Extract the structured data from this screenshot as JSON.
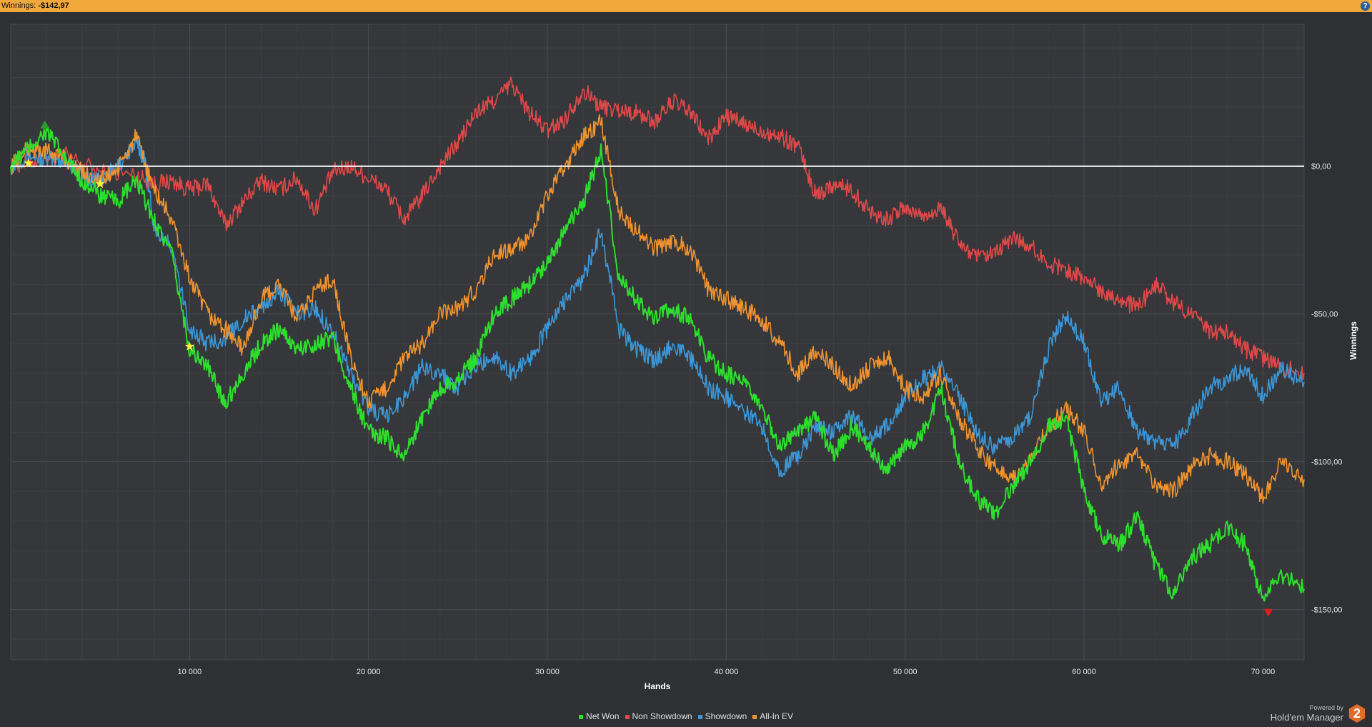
{
  "header": {
    "label": "Winnings:",
    "value": "-$142,97",
    "help_icon": "question-icon"
  },
  "branding": {
    "powered_by": "Powered by",
    "product": "Hold'em Manager",
    "logo_text": "2"
  },
  "chart_data": {
    "type": "line",
    "xlabel": "Hands",
    "ylabel": "Winnings",
    "xlim": [
      0,
      72300
    ],
    "ylim": [
      -167,
      48
    ],
    "x_ticks": [
      {
        "value": 10000,
        "label": "10 000"
      },
      {
        "value": 20000,
        "label": "20 000"
      },
      {
        "value": 30000,
        "label": "30 000"
      },
      {
        "value": 40000,
        "label": "40 000"
      },
      {
        "value": 50000,
        "label": "50 000"
      },
      {
        "value": 60000,
        "label": "60 000"
      },
      {
        "value": 70000,
        "label": "70 000"
      }
    ],
    "y_ticks": [
      {
        "value": 0,
        "label": "$0,00"
      },
      {
        "value": -50,
        "label": "-$50,00"
      },
      {
        "value": -100,
        "label": "-$100,00"
      },
      {
        "value": -150,
        "label": "-$150,00"
      }
    ],
    "grid": true,
    "legend_position": "bottom-center",
    "zero_line": true,
    "series": [
      {
        "name": "Non Showdown",
        "color": "#e04848",
        "points": [
          [
            0,
            0
          ],
          [
            1500,
            2
          ],
          [
            3000,
            4
          ],
          [
            5000,
            -2
          ],
          [
            7000,
            -3
          ],
          [
            8000,
            -6
          ],
          [
            9000,
            -5
          ],
          [
            10000,
            -8
          ],
          [
            11000,
            -6
          ],
          [
            12000,
            -20
          ],
          [
            13000,
            -12
          ],
          [
            14000,
            -5
          ],
          [
            15000,
            -8
          ],
          [
            16000,
            -4
          ],
          [
            17000,
            -15
          ],
          [
            18000,
            -2
          ],
          [
            19000,
            0
          ],
          [
            20000,
            -4
          ],
          [
            21000,
            -8
          ],
          [
            22000,
            -18
          ],
          [
            23000,
            -10
          ],
          [
            24000,
            0
          ],
          [
            25000,
            8
          ],
          [
            26000,
            18
          ],
          [
            27000,
            22
          ],
          [
            28000,
            28
          ],
          [
            29000,
            18
          ],
          [
            30000,
            12
          ],
          [
            31000,
            16
          ],
          [
            32000,
            26
          ],
          [
            33000,
            20
          ],
          [
            34000,
            19
          ],
          [
            35000,
            18
          ],
          [
            36000,
            15
          ],
          [
            37000,
            22
          ],
          [
            38000,
            18
          ],
          [
            39000,
            9
          ],
          [
            40000,
            17
          ],
          [
            41000,
            14
          ],
          [
            42000,
            12
          ],
          [
            43000,
            10
          ],
          [
            44000,
            7
          ],
          [
            45000,
            -10
          ],
          [
            46000,
            -6
          ],
          [
            47000,
            -8
          ],
          [
            48000,
            -15
          ],
          [
            49000,
            -18
          ],
          [
            50000,
            -14
          ],
          [
            51000,
            -17
          ],
          [
            52000,
            -14
          ],
          [
            53000,
            -26
          ],
          [
            54000,
            -31
          ],
          [
            55000,
            -30
          ],
          [
            56000,
            -24
          ],
          [
            57000,
            -27
          ],
          [
            58000,
            -33
          ],
          [
            59000,
            -35
          ],
          [
            60000,
            -38
          ],
          [
            61000,
            -42
          ],
          [
            62000,
            -45
          ],
          [
            63000,
            -48
          ],
          [
            64000,
            -40
          ],
          [
            65000,
            -46
          ],
          [
            66000,
            -50
          ],
          [
            67000,
            -56
          ],
          [
            68000,
            -56
          ],
          [
            69000,
            -62
          ],
          [
            70000,
            -65
          ],
          [
            71000,
            -68
          ],
          [
            72300,
            -70
          ]
        ]
      },
      {
        "name": "Showdown",
        "color": "#3b97d8",
        "points": [
          [
            0,
            0
          ],
          [
            1000,
            4
          ],
          [
            2000,
            2
          ],
          [
            3000,
            2
          ],
          [
            4000,
            -3
          ],
          [
            5000,
            -5
          ],
          [
            6000,
            0
          ],
          [
            7000,
            8
          ],
          [
            7500,
            2
          ],
          [
            8000,
            -20
          ],
          [
            9000,
            -28
          ],
          [
            10000,
            -55
          ],
          [
            11000,
            -60
          ],
          [
            12000,
            -58
          ],
          [
            13000,
            -52
          ],
          [
            14000,
            -48
          ],
          [
            15000,
            -42
          ],
          [
            16000,
            -50
          ],
          [
            17000,
            -48
          ],
          [
            18000,
            -56
          ],
          [
            19000,
            -70
          ],
          [
            20000,
            -82
          ],
          [
            21000,
            -85
          ],
          [
            22000,
            -78
          ],
          [
            23000,
            -68
          ],
          [
            24000,
            -70
          ],
          [
            25000,
            -75
          ],
          [
            26000,
            -68
          ],
          [
            27000,
            -64
          ],
          [
            28000,
            -70
          ],
          [
            29000,
            -65
          ],
          [
            30000,
            -55
          ],
          [
            31000,
            -45
          ],
          [
            32000,
            -38
          ],
          [
            33000,
            -22
          ],
          [
            34000,
            -55
          ],
          [
            35000,
            -62
          ],
          [
            36000,
            -66
          ],
          [
            37000,
            -60
          ],
          [
            38000,
            -65
          ],
          [
            39000,
            -75
          ],
          [
            40000,
            -78
          ],
          [
            41000,
            -83
          ],
          [
            42000,
            -88
          ],
          [
            43000,
            -103
          ],
          [
            44000,
            -98
          ],
          [
            45000,
            -88
          ],
          [
            46000,
            -90
          ],
          [
            47000,
            -84
          ],
          [
            48000,
            -92
          ],
          [
            49000,
            -88
          ],
          [
            50000,
            -78
          ],
          [
            51000,
            -72
          ],
          [
            52000,
            -68
          ],
          [
            53000,
            -78
          ],
          [
            54000,
            -90
          ],
          [
            55000,
            -95
          ],
          [
            56000,
            -92
          ],
          [
            57000,
            -85
          ],
          [
            58000,
            -62
          ],
          [
            59000,
            -50
          ],
          [
            60000,
            -60
          ],
          [
            61000,
            -80
          ],
          [
            62000,
            -75
          ],
          [
            63000,
            -90
          ],
          [
            64000,
            -93
          ],
          [
            65000,
            -95
          ],
          [
            66000,
            -85
          ],
          [
            67000,
            -75
          ],
          [
            68000,
            -72
          ],
          [
            69000,
            -68
          ],
          [
            70000,
            -78
          ],
          [
            71000,
            -68
          ],
          [
            72300,
            -73
          ]
        ]
      },
      {
        "name": "All-In EV",
        "color": "#f0932e",
        "points": [
          [
            0,
            0
          ],
          [
            1000,
            6
          ],
          [
            2000,
            5
          ],
          [
            3000,
            3
          ],
          [
            4000,
            -2
          ],
          [
            5000,
            -5
          ],
          [
            6000,
            -1
          ],
          [
            7000,
            10
          ],
          [
            8000,
            -8
          ],
          [
            9000,
            -18
          ],
          [
            10000,
            -38
          ],
          [
            11000,
            -50
          ],
          [
            12000,
            -55
          ],
          [
            13000,
            -62
          ],
          [
            14000,
            -45
          ],
          [
            15000,
            -40
          ],
          [
            16000,
            -52
          ],
          [
            17000,
            -42
          ],
          [
            18000,
            -38
          ],
          [
            19000,
            -65
          ],
          [
            20000,
            -80
          ],
          [
            21000,
            -75
          ],
          [
            22000,
            -65
          ],
          [
            23000,
            -60
          ],
          [
            24000,
            -50
          ],
          [
            25000,
            -48
          ],
          [
            26000,
            -42
          ],
          [
            27000,
            -30
          ],
          [
            28000,
            -28
          ],
          [
            29000,
            -25
          ],
          [
            30000,
            -10
          ],
          [
            31000,
            0
          ],
          [
            32000,
            10
          ],
          [
            33000,
            15
          ],
          [
            34000,
            -15
          ],
          [
            35000,
            -22
          ],
          [
            36000,
            -28
          ],
          [
            37000,
            -25
          ],
          [
            38000,
            -28
          ],
          [
            39000,
            -42
          ],
          [
            40000,
            -45
          ],
          [
            41000,
            -48
          ],
          [
            42000,
            -52
          ],
          [
            43000,
            -60
          ],
          [
            44000,
            -70
          ],
          [
            45000,
            -62
          ],
          [
            46000,
            -68
          ],
          [
            47000,
            -74
          ],
          [
            48000,
            -68
          ],
          [
            49000,
            -64
          ],
          [
            50000,
            -75
          ],
          [
            51000,
            -78
          ],
          [
            52000,
            -70
          ],
          [
            53000,
            -85
          ],
          [
            54000,
            -95
          ],
          [
            55000,
            -102
          ],
          [
            56000,
            -105
          ],
          [
            57000,
            -100
          ],
          [
            58000,
            -88
          ],
          [
            59000,
            -82
          ],
          [
            60000,
            -90
          ],
          [
            61000,
            -108
          ],
          [
            62000,
            -100
          ],
          [
            63000,
            -98
          ],
          [
            64000,
            -108
          ],
          [
            65000,
            -110
          ],
          [
            66000,
            -102
          ],
          [
            67000,
            -98
          ],
          [
            68000,
            -100
          ],
          [
            69000,
            -104
          ],
          [
            70000,
            -112
          ],
          [
            71000,
            -100
          ],
          [
            72300,
            -106
          ]
        ]
      },
      {
        "name": "Net Won",
        "color": "#2dde2d",
        "points": [
          [
            0,
            0
          ],
          [
            1000,
            6
          ],
          [
            2000,
            12
          ],
          [
            3000,
            3
          ],
          [
            4000,
            -5
          ],
          [
            5000,
            -10
          ],
          [
            6000,
            -12
          ],
          [
            7000,
            -5
          ],
          [
            8000,
            -18
          ],
          [
            9000,
            -30
          ],
          [
            10000,
            -62
          ],
          [
            11000,
            -68
          ],
          [
            12000,
            -80
          ],
          [
            13000,
            -70
          ],
          [
            14000,
            -60
          ],
          [
            15000,
            -55
          ],
          [
            16000,
            -62
          ],
          [
            17000,
            -60
          ],
          [
            18000,
            -58
          ],
          [
            19000,
            -75
          ],
          [
            20000,
            -90
          ],
          [
            21000,
            -92
          ],
          [
            22000,
            -98
          ],
          [
            23000,
            -85
          ],
          [
            24000,
            -75
          ],
          [
            25000,
            -72
          ],
          [
            26000,
            -65
          ],
          [
            27000,
            -50
          ],
          [
            28000,
            -45
          ],
          [
            29000,
            -40
          ],
          [
            30000,
            -32
          ],
          [
            31000,
            -22
          ],
          [
            32000,
            -12
          ],
          [
            33000,
            5
          ],
          [
            34000,
            -38
          ],
          [
            35000,
            -45
          ],
          [
            36000,
            -52
          ],
          [
            37000,
            -48
          ],
          [
            38000,
            -52
          ],
          [
            39000,
            -65
          ],
          [
            40000,
            -70
          ],
          [
            41000,
            -74
          ],
          [
            42000,
            -82
          ],
          [
            43000,
            -95
          ],
          [
            44000,
            -90
          ],
          [
            45000,
            -85
          ],
          [
            46000,
            -98
          ],
          [
            47000,
            -88
          ],
          [
            48000,
            -95
          ],
          [
            49000,
            -103
          ],
          [
            50000,
            -95
          ],
          [
            51000,
            -90
          ],
          [
            52000,
            -75
          ],
          [
            53000,
            -100
          ],
          [
            54000,
            -112
          ],
          [
            55000,
            -118
          ],
          [
            56000,
            -108
          ],
          [
            57000,
            -100
          ],
          [
            58000,
            -88
          ],
          [
            59000,
            -85
          ],
          [
            60000,
            -110
          ],
          [
            61000,
            -125
          ],
          [
            62000,
            -128
          ],
          [
            63000,
            -118
          ],
          [
            64000,
            -135
          ],
          [
            65000,
            -145
          ],
          [
            66000,
            -133
          ],
          [
            67000,
            -128
          ],
          [
            68000,
            -122
          ],
          [
            69000,
            -128
          ],
          [
            70000,
            -147
          ],
          [
            71000,
            -138
          ],
          [
            72300,
            -143
          ]
        ]
      }
    ],
    "legend_order": [
      "Net Won",
      "Non Showdown",
      "Showdown",
      "All-In EV"
    ],
    "markers": [
      {
        "type": "star",
        "x": 1000,
        "y": 1,
        "color": "#ffee33"
      },
      {
        "type": "star",
        "x": 5000,
        "y": -6,
        "color": "#ffee33"
      },
      {
        "type": "star",
        "x": 10000,
        "y": -61,
        "color": "#ffee33"
      },
      {
        "type": "triangle-up",
        "x": 1900,
        "y": 14,
        "color": "#2a9a2a"
      },
      {
        "type": "triangle-down",
        "x": 70300,
        "y": -151,
        "color": "#e01c1c"
      }
    ]
  }
}
